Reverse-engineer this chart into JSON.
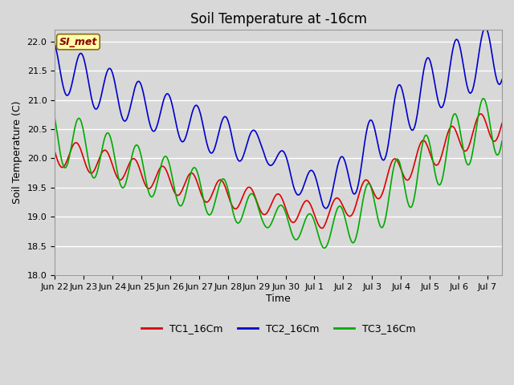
{
  "title": "Soil Temperature at -16cm",
  "xlabel": "Time",
  "ylabel": "Soil Temperature (C)",
  "ylim": [
    18.0,
    22.2
  ],
  "yticks": [
    18.0,
    18.5,
    19.0,
    19.5,
    20.0,
    20.5,
    21.0,
    21.5,
    22.0
  ],
  "background_color": "#d8d8d8",
  "plot_bg_color": "#d8d8d8",
  "grid_color": "#ffffff",
  "series": {
    "TC1_16Cm": {
      "color": "#dd0000",
      "label": "TC1_16Cm"
    },
    "TC2_16Cm": {
      "color": "#0000cc",
      "label": "TC2_16Cm"
    },
    "TC3_16Cm": {
      "color": "#00aa00",
      "label": "TC3_16Cm"
    }
  },
  "annotation": {
    "text": "SI_met",
    "fontsize": 9,
    "facecolor": "#ffffaa",
    "edgecolor": "#8B6914",
    "textcolor": "#8B0000"
  },
  "title_fontsize": 12,
  "axis_fontsize": 9,
  "tick_fontsize": 8,
  "legend_fontsize": 9,
  "line_width": 1.2,
  "TC1_base_trend": [
    20.12,
    20.0,
    19.88,
    19.72,
    19.6,
    19.48,
    19.36,
    19.24,
    19.12,
    19.0,
    19.25,
    19.6,
    19.95,
    20.2,
    20.45,
    20.6
  ],
  "TC2_base_trend": [
    21.6,
    21.35,
    21.1,
    20.9,
    20.7,
    20.5,
    20.3,
    20.2,
    19.7,
    19.4,
    19.8,
    20.45,
    21.0,
    21.4,
    21.65,
    21.8
  ],
  "TC3_base_trend": [
    20.4,
    20.18,
    19.96,
    19.78,
    19.6,
    19.42,
    19.24,
    19.06,
    18.88,
    18.72,
    18.95,
    19.3,
    19.7,
    20.1,
    20.45,
    20.6
  ],
  "TC1_amplitude": [
    0.25,
    0.23,
    0.22,
    0.22,
    0.22,
    0.22,
    0.22,
    0.2,
    0.22,
    0.2,
    0.22,
    0.25,
    0.27,
    0.27,
    0.27,
    0.27
  ],
  "TC2_amplitude": [
    0.42,
    0.42,
    0.4,
    0.38,
    0.36,
    0.36,
    0.36,
    0.2,
    0.28,
    0.28,
    0.45,
    0.5,
    0.52,
    0.52,
    0.52,
    0.52
  ],
  "TC3_amplitude": [
    0.5,
    0.46,
    0.42,
    0.4,
    0.38,
    0.36,
    0.34,
    0.22,
    0.26,
    0.26,
    0.4,
    0.48,
    0.52,
    0.52,
    0.52,
    0.52
  ],
  "TC1_phase": 3.14159,
  "TC2_phase": 2.0944,
  "TC3_phase": 2.51327,
  "xtick_labels": [
    "Jun 22",
    "Jun 23",
    "Jun 24",
    "Jun 25",
    "Jun 26",
    "Jun 27",
    "Jun 28",
    "Jun 29",
    "Jun 30",
    "Jul 1",
    "Jul 2",
    "Jul 3",
    "Jul 4",
    "Jul 5",
    "Jul 6",
    "Jul 7"
  ],
  "xtick_positions": [
    0,
    1,
    2,
    3,
    4,
    5,
    6,
    7,
    8,
    9,
    10,
    11,
    12,
    13,
    14,
    15
  ],
  "num_days": 15.5
}
